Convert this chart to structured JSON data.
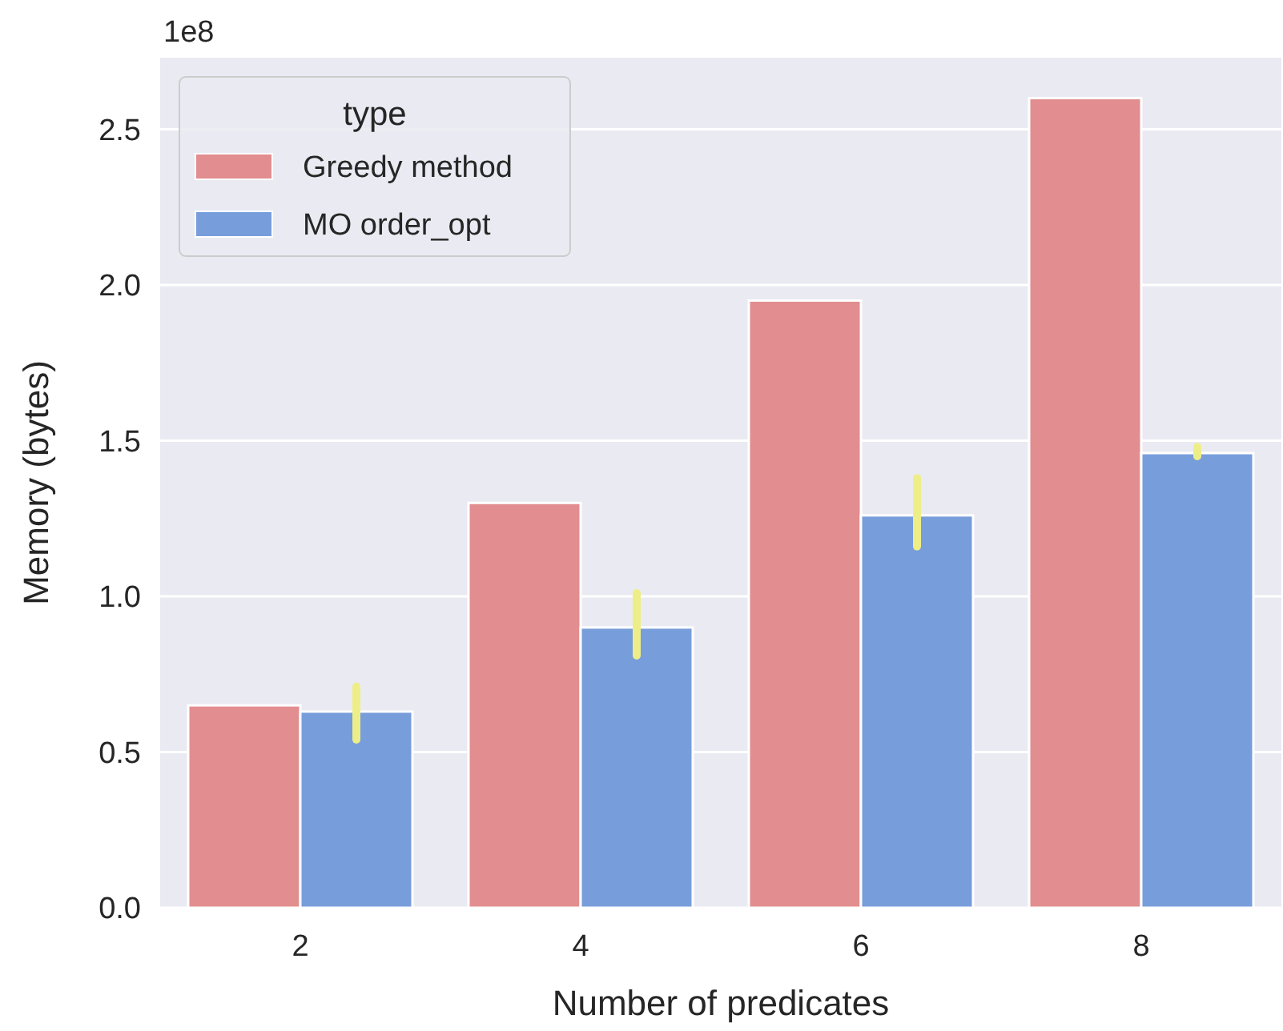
{
  "chart_data": {
    "type": "bar",
    "xlabel": "Number of predicates",
    "ylabel": "Memory (bytes)",
    "legend_title": "type",
    "annotations": [
      "1e8"
    ],
    "categories": [
      "2",
      "4",
      "6",
      "8"
    ],
    "series": [
      {
        "name": "Greedy method",
        "color": "#e28d8f",
        "values": [
          0.65,
          1.3,
          1.95,
          2.6
        ]
      },
      {
        "name": "MO order_opt",
        "color": "#779ddb",
        "values": [
          0.63,
          0.9,
          1.26,
          1.46
        ],
        "errors": [
          [
            0.54,
            0.71
          ],
          [
            0.81,
            1.01
          ],
          [
            1.16,
            1.38
          ],
          [
            1.45,
            1.48
          ]
        ]
      }
    ],
    "ylim": [
      0,
      2.73
    ],
    "yticks": [
      {
        "value": 0,
        "label": "0.0"
      },
      {
        "value": 0.5,
        "label": "0.5"
      },
      {
        "value": 1.0,
        "label": "1.0"
      },
      1.5,
      {
        "value": 2.0,
        "label": "2.0"
      },
      2.5
    ],
    "grid": "y",
    "legend": "top left"
  }
}
